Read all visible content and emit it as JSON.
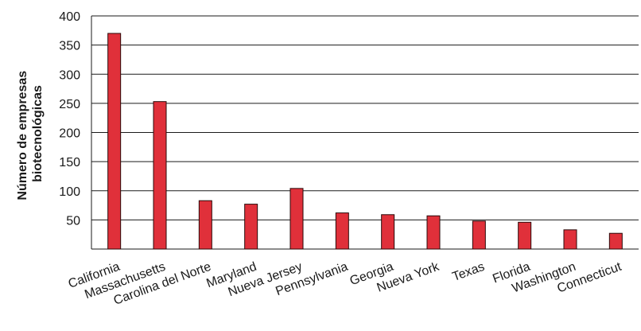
{
  "chart_data": {
    "type": "bar",
    "title": "",
    "xlabel": "",
    "ylabel": [
      "Número de empresas",
      "biotecnológicas"
    ],
    "categories": [
      "California",
      "Massachusetts",
      "Carolina del Norte",
      "Maryland",
      "Nueva Jersey",
      "Pennsylvania",
      "Georgia",
      "Nueva York",
      "Texas",
      "Florida",
      "Washington",
      "Connecticut"
    ],
    "values": [
      370,
      253,
      83,
      77,
      104,
      62,
      59,
      57,
      48,
      46,
      33,
      27
    ],
    "ylim": [
      0,
      400
    ],
    "yticks": [
      50,
      100,
      150,
      200,
      250,
      300,
      350,
      400
    ],
    "grid": "horizontal",
    "colors": {
      "bar": "#e0303a",
      "bar_stroke": "#2a0a0a",
      "grid": "#1a1a1a",
      "axis": "#1a1a1a"
    }
  }
}
